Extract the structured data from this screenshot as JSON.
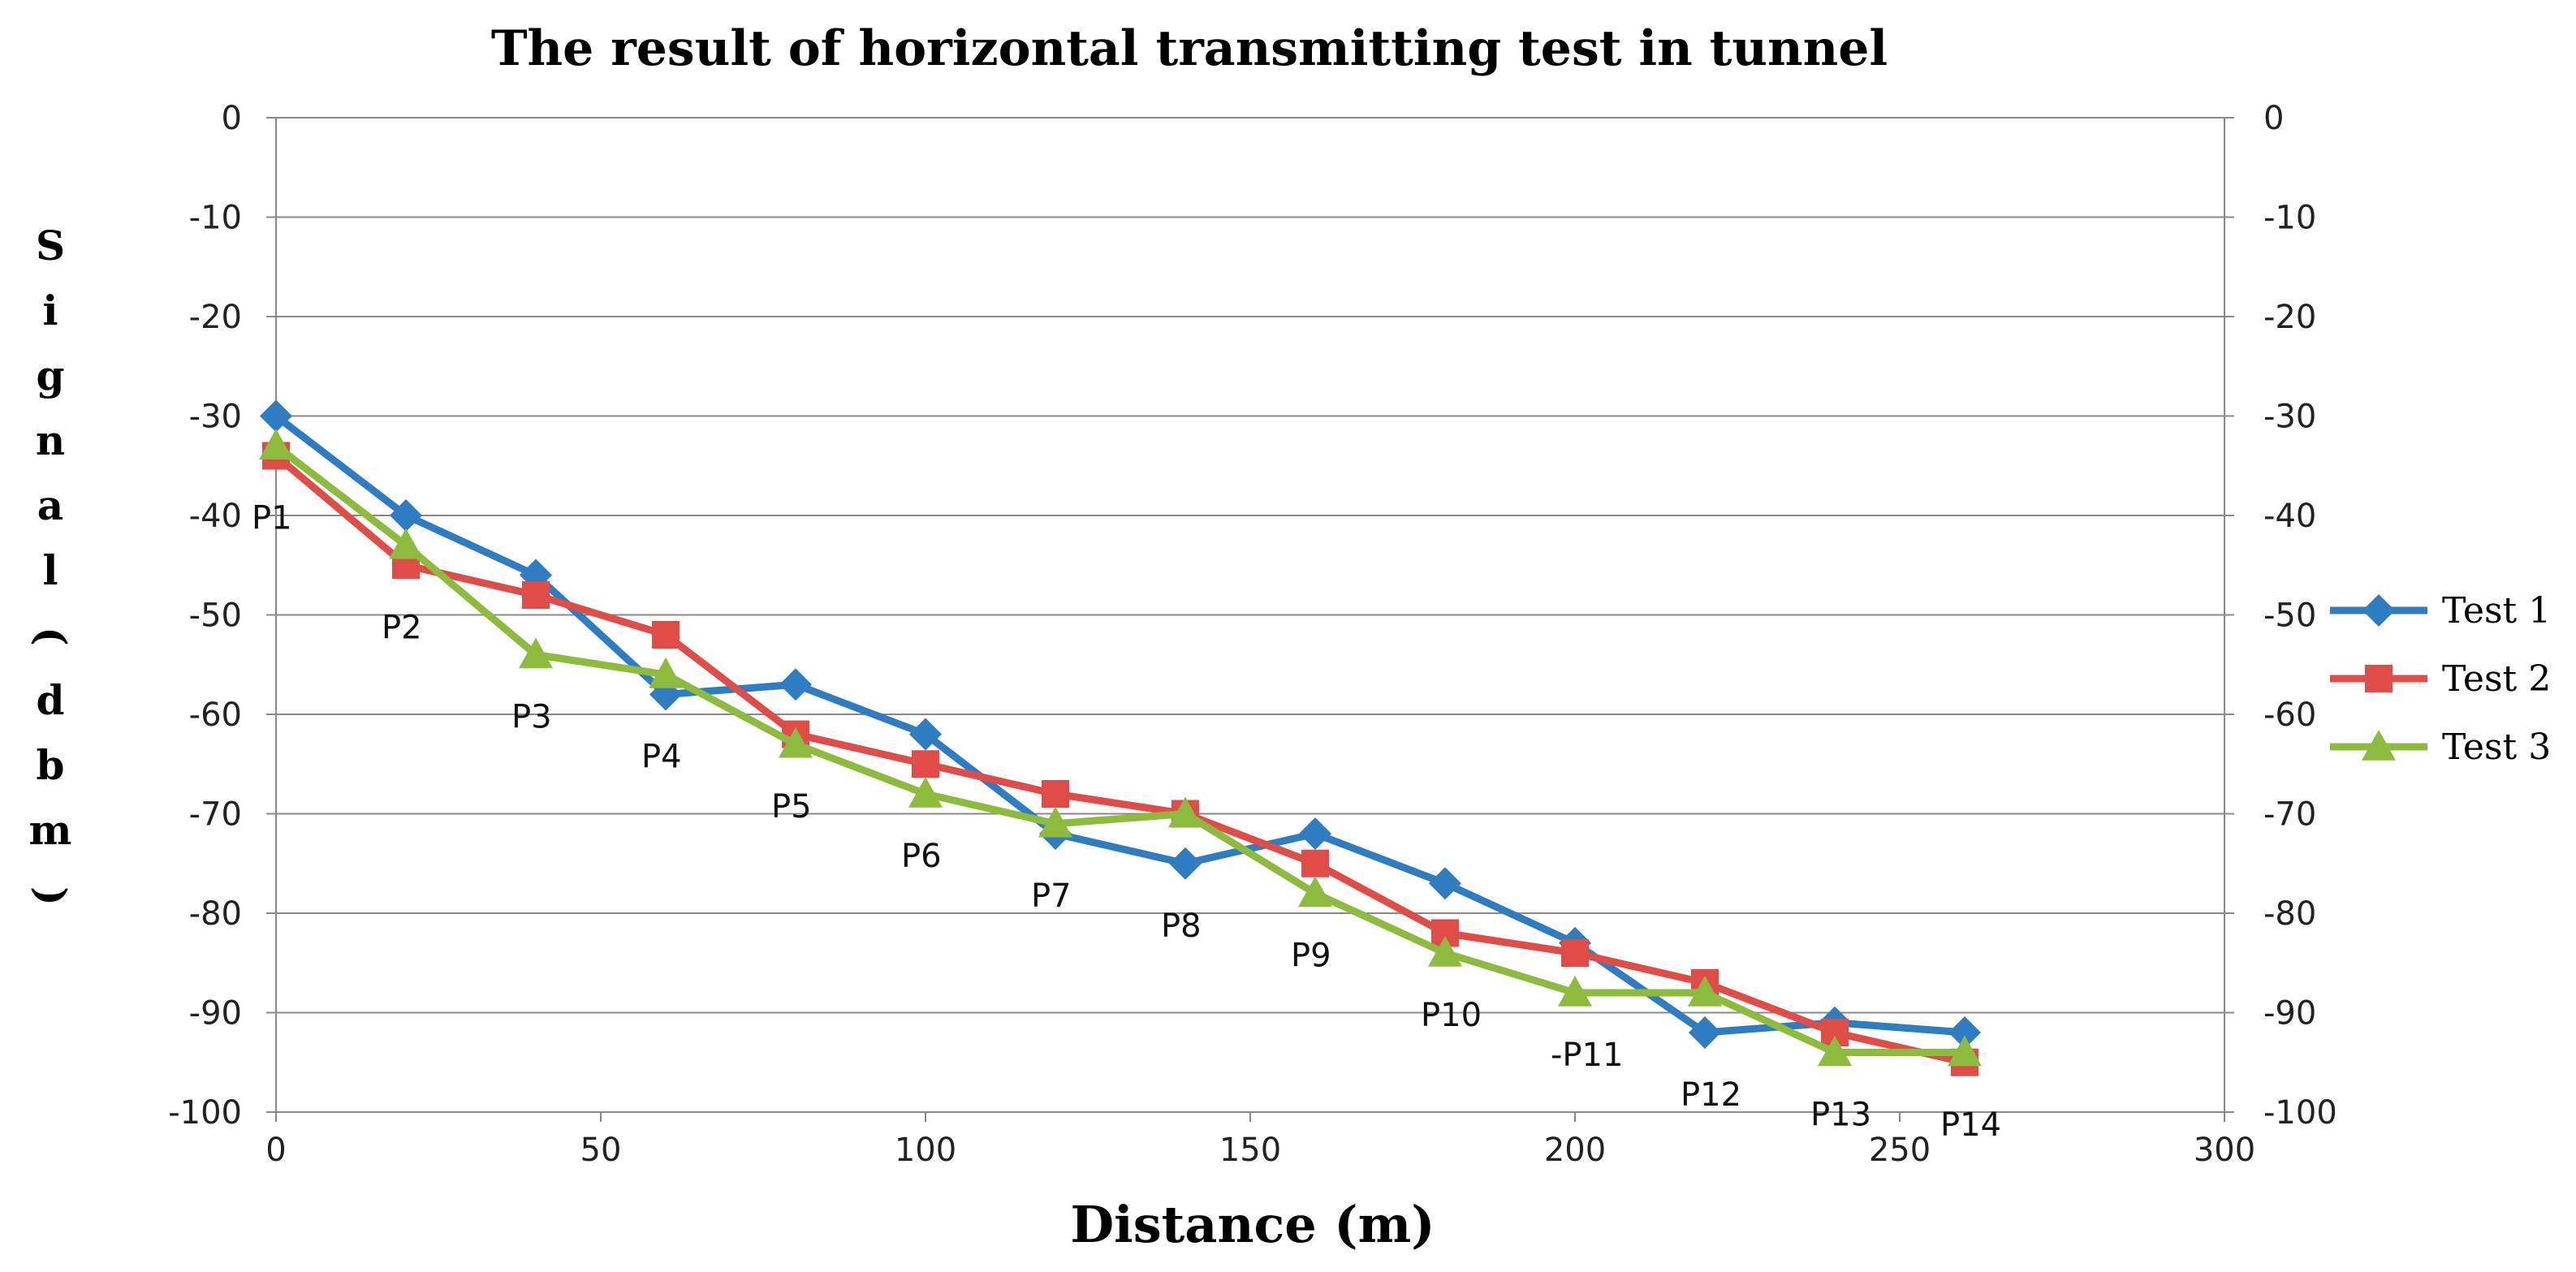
{
  "chart_data": {
    "type": "line",
    "title": "The result of horizontal transmitting test in tunnel",
    "xlabel": "Distance (m)",
    "ylabel": "Signal(dbm)",
    "xlim": [
      0,
      300
    ],
    "ylim": [
      -100,
      0
    ],
    "x_ticks": [
      "0",
      "50",
      "100",
      "150",
      "200",
      "250",
      "300"
    ],
    "y_ticks": [
      "0",
      "-10",
      "-20",
      "-30",
      "-40",
      "-50",
      "-60",
      "-70",
      "-80",
      "-90",
      "-100"
    ],
    "y_ticks_right": [
      "0",
      "-10",
      "-20",
      "-30",
      "-40",
      "-50",
      "-60",
      "-70",
      "-80",
      "-90",
      "-100"
    ],
    "grid": "horizontal",
    "legend_position": "right",
    "x": [
      0,
      20,
      40,
      60,
      80,
      100,
      120,
      140,
      160,
      180,
      200,
      220,
      240,
      260
    ],
    "point_labels": [
      "P1",
      "P2",
      "P3",
      "P4",
      "P5",
      "P6",
      "P7",
      "P8",
      "P9",
      "P10",
      "-P11",
      "P12",
      "P13",
      "P14"
    ],
    "series": [
      {
        "name": "Test 1",
        "color": "#2E7DC2",
        "marker": "diamond",
        "values": [
          -30,
          -40,
          -46,
          -58,
          -57,
          -62,
          -72,
          -75,
          -72,
          -77,
          -83,
          -92,
          -91,
          -92
        ]
      },
      {
        "name": "Test 2",
        "color": "#E04C48",
        "marker": "square",
        "values": [
          -34,
          -45,
          -48,
          -52,
          -62,
          -65,
          -68,
          -70,
          -75,
          -82,
          -84,
          -87,
          -92,
          -95
        ]
      },
      {
        "name": "Test 3",
        "color": "#8DBB3E",
        "marker": "triangle",
        "values": [
          -33,
          -43,
          -54,
          -56,
          -63,
          -68,
          -71,
          -70,
          -78,
          -84,
          -88,
          -88,
          -94,
          -94
        ]
      }
    ]
  }
}
